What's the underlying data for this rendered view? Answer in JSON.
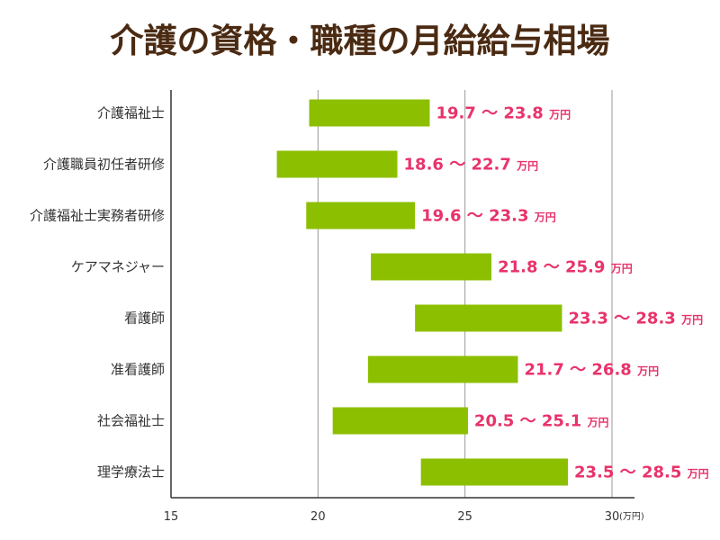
{
  "chart_data": {
    "type": "bar",
    "title": "介護の資格・職種の月給給与相場",
    "orientation": "horizontal-range",
    "xlim": [
      15,
      30
    ],
    "xticks": [
      15,
      20,
      25,
      30
    ],
    "x_unit_label": "(万円)",
    "value_unit": "万円",
    "range_separator": "〜",
    "grid": true,
    "colors": {
      "bar": "#8cbf00",
      "label": "#e8336b",
      "title": "#4a2a12",
      "grid": "#999999",
      "axis": "#333333"
    },
    "categories": [
      "介護福祉士",
      "介護職員初任者研修",
      "介護福祉士実務者研修",
      "ケアマネジャー",
      "看護師",
      "准看護師",
      "社会福祉士",
      "理学療法士"
    ],
    "low": [
      19.7,
      18.6,
      19.6,
      21.8,
      23.3,
      21.7,
      20.5,
      23.5
    ],
    "high": [
      23.8,
      22.7,
      23.3,
      25.9,
      28.3,
      26.8,
      25.1,
      28.5
    ],
    "low_labels": [
      "19.7",
      "18.6",
      "19.6",
      "21.8",
      "23.3",
      "21.7",
      "20.5",
      "23.5"
    ],
    "high_labels": [
      "23.8",
      "22.7",
      "23.3",
      "25.9",
      "28.3",
      "26.8",
      "25.1",
      "28.5"
    ]
  }
}
